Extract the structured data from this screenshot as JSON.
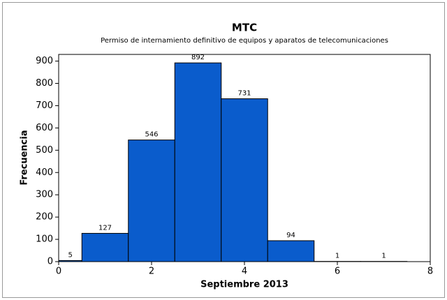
{
  "chart_data": {
    "type": "histogram",
    "title": "MTC",
    "subtitle": "Permiso de internamiento definitivo de equipos y aparatos de telecomunicaciones",
    "xlabel": "Septiembre 2013",
    "ylabel": "Frecuencia",
    "bins": [
      -0.5,
      0.5,
      1.5,
      2.5,
      3.5,
      4.5,
      5.5,
      6.5,
      7.5
    ],
    "values": [
      5,
      127,
      546,
      892,
      731,
      94,
      1,
      1
    ],
    "color": "#0a5ccc",
    "xlim": [
      0,
      8
    ],
    "xticks": [
      0,
      2,
      4,
      6,
      8
    ],
    "ylim": [
      0,
      930
    ],
    "yticks": [
      0,
      100,
      200,
      300,
      400,
      500,
      600,
      700,
      800,
      900
    ]
  }
}
